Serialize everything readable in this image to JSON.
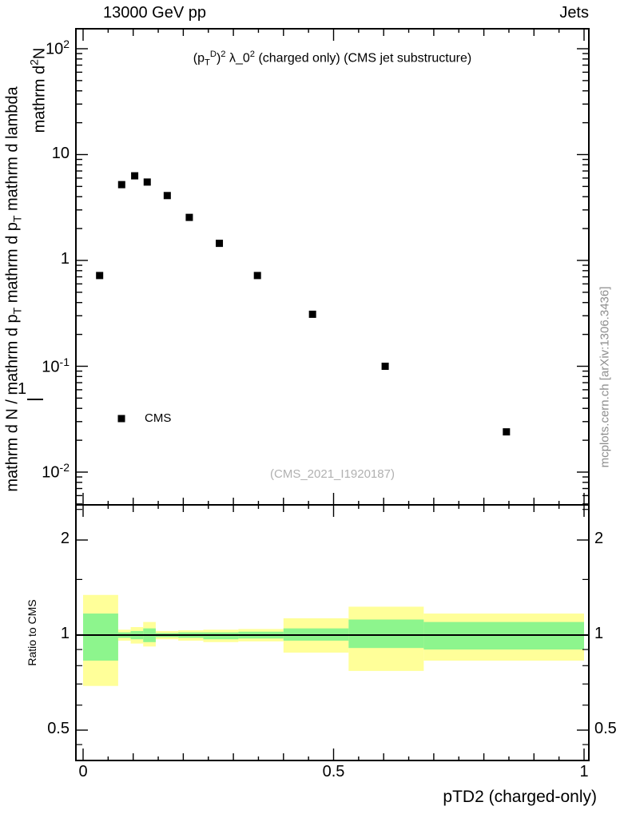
{
  "header": {
    "left": "13000 GeV pp",
    "right": "Jets"
  },
  "side_labels": {
    "left_short": "mathrm d^{2}N",
    "left_long": "mathrm d N / mathrm d p_{T} mathrm d p_{T} mathrm d lambda",
    "fraction_one": "1",
    "right_watermark": "mcplots.cern.ch [arXiv:1306.3436]"
  },
  "main_panel": {
    "title": "(p_{T}^{D})^{2} λ_0^{2} (charged only) (CMS jet substructure)",
    "watermark": "(CMS_2021_I1920187)",
    "legend_label": "CMS"
  },
  "ratio_panel": {
    "ylabel": "Ratio to CMS"
  },
  "xaxis": {
    "title": "pTD2 (charged-only)"
  },
  "chart_data": {
    "type": "scatter",
    "title": "(p_T^D)^2 λ_0^2 (charged only) (CMS jet substructure)",
    "xlabel": "pTD2 (charged-only)",
    "x_range": [
      -0.014,
      1.01
    ],
    "x_major_ticks": [
      0,
      0.5,
      1
    ],
    "x_tick_labels": [
      "0",
      "0.5",
      "1"
    ],
    "main": {
      "yscale": "log",
      "ylim": [
        0.005,
        150
      ],
      "yticks": [
        100,
        10,
        1,
        0.1,
        0.01
      ],
      "ytick_labels": [
        "10^{2}",
        "10",
        "1",
        "10^{-1}",
        "10^{-2}"
      ],
      "series": [
        {
          "name": "CMS",
          "marker": "filled-square",
          "color": "#000000",
          "points": [
            [
              0.033,
              0.72
            ],
            [
              0.077,
              5.2
            ],
            [
              0.103,
              6.3
            ],
            [
              0.128,
              5.5
            ],
            [
              0.168,
              4.1
            ],
            [
              0.212,
              2.55
            ],
            [
              0.272,
              1.45
            ],
            [
              0.348,
              0.72
            ],
            [
              0.458,
              0.31
            ],
            [
              0.603,
              0.1
            ],
            [
              0.845,
              0.024
            ]
          ]
        }
      ]
    },
    "ratio": {
      "yscale": "log",
      "ylabel": "Ratio to CMS",
      "ylim": [
        0.4,
        2.6
      ],
      "yticks": [
        2,
        1,
        0.5
      ],
      "ytick_labels": [
        "2",
        "1",
        "0.5"
      ],
      "reference_line": 1.0,
      "bands": [
        {
          "x": [
            0.0,
            0.07
          ],
          "yellow": [
            0.69,
            1.34
          ],
          "green": [
            0.83,
            1.17
          ]
        },
        {
          "x": [
            0.07,
            0.095
          ],
          "yellow": [
            0.96,
            1.04
          ],
          "green": [
            0.98,
            1.02
          ]
        },
        {
          "x": [
            0.095,
            0.12
          ],
          "yellow": [
            0.94,
            1.06
          ],
          "green": [
            0.97,
            1.03
          ]
        },
        {
          "x": [
            0.12,
            0.145
          ],
          "yellow": [
            0.92,
            1.1
          ],
          "green": [
            0.95,
            1.05
          ]
        },
        {
          "x": [
            0.145,
            0.19
          ],
          "yellow": [
            0.97,
            1.03
          ],
          "green": [
            0.985,
            1.015
          ]
        },
        {
          "x": [
            0.19,
            0.24
          ],
          "yellow": [
            0.96,
            1.035
          ],
          "green": [
            0.98,
            1.02
          ]
        },
        {
          "x": [
            0.24,
            0.31
          ],
          "yellow": [
            0.95,
            1.04
          ],
          "green": [
            0.97,
            1.02
          ]
        },
        {
          "x": [
            0.31,
            0.4
          ],
          "yellow": [
            0.955,
            1.045
          ],
          "green": [
            0.975,
            1.025
          ]
        },
        {
          "x": [
            0.4,
            0.53
          ],
          "yellow": [
            0.88,
            1.13
          ],
          "green": [
            0.96,
            1.05
          ]
        },
        {
          "x": [
            0.53,
            0.68
          ],
          "yellow": [
            0.77,
            1.23
          ],
          "green": [
            0.91,
            1.12
          ]
        },
        {
          "x": [
            0.68,
            1.0
          ],
          "yellow": [
            0.83,
            1.17
          ],
          "green": [
            0.9,
            1.1
          ]
        }
      ]
    },
    "colors": {
      "band_outer": "#ffff99",
      "band_inner": "#8df58d",
      "marker": "#000000",
      "reference": "#000000"
    }
  }
}
